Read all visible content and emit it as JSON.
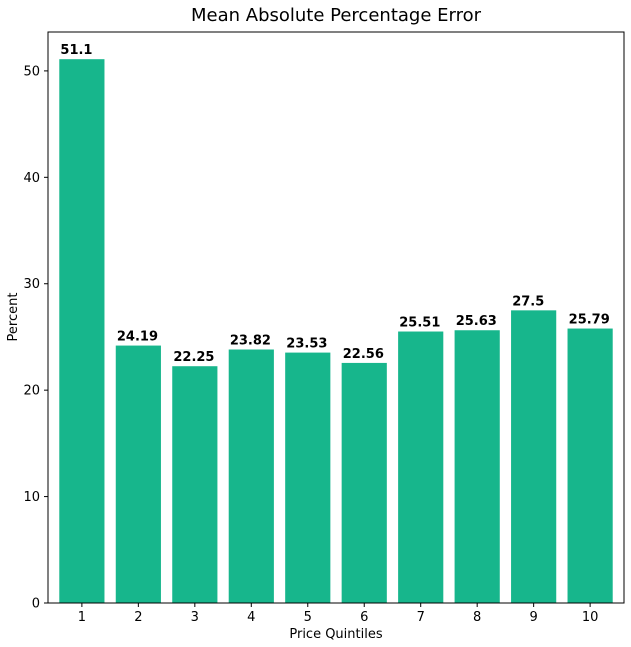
{
  "chart_data": {
    "type": "bar",
    "title": "Mean Absolute Percentage Error",
    "xlabel": "Price Quintiles",
    "ylabel": "Percent",
    "categories": [
      "1",
      "2",
      "3",
      "4",
      "5",
      "6",
      "7",
      "8",
      "9",
      "10"
    ],
    "values": [
      51.1,
      24.19,
      22.25,
      23.82,
      23.53,
      22.56,
      25.51,
      25.63,
      27.5,
      25.79
    ],
    "data_labels": [
      "51.1",
      "24.19",
      "22.25",
      "23.82",
      "23.53",
      "22.56",
      "25.51",
      "25.63",
      "27.5",
      "25.79"
    ],
    "ylim": [
      0,
      53.655
    ],
    "yticks": [
      0,
      10,
      20,
      30,
      40,
      50
    ],
    "ytick_labels": [
      "0",
      "10",
      "20",
      "30",
      "40",
      "50"
    ],
    "grid": false,
    "bar_color": "#17b68c"
  }
}
